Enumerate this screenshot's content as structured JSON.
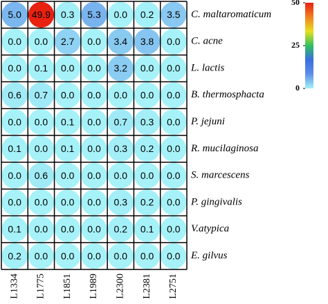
{
  "chart_data": {
    "type": "heatmap",
    "categories": [
      "L1334",
      "L1775",
      "L1851",
      "L1989",
      "L2300",
      "L2381",
      "L2751"
    ],
    "rows": [
      "C. maltaromaticum",
      "C. acne",
      "L. lactis",
      "B. thermosphacta",
      "P. jejuni",
      "R. mucilaginosa",
      "S. marcescens",
      "P. gingivalis",
      "V.atypica",
      "E. gilvus"
    ],
    "values": [
      [
        5.0,
        49.9,
        0.3,
        5.3,
        0.0,
        0.2,
        3.5
      ],
      [
        0.0,
        0.0,
        2.7,
        0.0,
        3.4,
        3.8,
        0.0
      ],
      [
        0.0,
        0.1,
        0.0,
        0.0,
        3.2,
        0.0,
        0.0
      ],
      [
        0.6,
        0.7,
        0.0,
        0.0,
        0.0,
        0.0,
        0.0
      ],
      [
        0.0,
        0.0,
        0.1,
        0.0,
        0.7,
        0.3,
        0.0
      ],
      [
        0.1,
        0.0,
        0.1,
        0.0,
        0.3,
        0.2,
        0.0
      ],
      [
        0.0,
        0.6,
        0.0,
        0.0,
        0.0,
        0.0,
        0.0
      ],
      [
        0.0,
        0.0,
        0.0,
        0.0,
        0.3,
        0.2,
        0.0
      ],
      [
        0.1,
        0.0,
        0.0,
        0.0,
        0.2,
        0.1,
        0.0
      ],
      [
        0.2,
        0.0,
        0.0,
        0.0,
        0.0,
        0.0,
        0.0
      ]
    ],
    "value_labels": [
      [
        "5.0",
        "49.9",
        "0.3",
        "5.3",
        "0.0",
        "0.2",
        "3.5"
      ],
      [
        "0.0",
        "0.0",
        "2.7",
        "0.0",
        "3.4",
        "3.8",
        "0.0"
      ],
      [
        "0.0",
        "0.1",
        "0.0",
        "0.0",
        "3.2",
        "0.0",
        "0.0"
      ],
      [
        "0.6",
        "0.7",
        "0.0",
        "0.0",
        "0.0",
        "0.0",
        "0.0"
      ],
      [
        "0.0",
        "0.0",
        "0.1",
        "0.0",
        "0.7",
        "0.3",
        "0.0"
      ],
      [
        "0.1",
        "0.0",
        "0.1",
        "0.0",
        "0.3",
        "0.2",
        "0.0"
      ],
      [
        "0.0",
        "0.6",
        "0.0",
        "0.0",
        "0.0",
        "0.0",
        "0.0"
      ],
      [
        "0.0",
        "0.0",
        "0.0",
        "0.0",
        "0.3",
        "0.2",
        "0.0"
      ],
      [
        "0.1",
        "0.0",
        "0.0",
        "0.0",
        "0.2",
        "0.1",
        "0.0"
      ],
      [
        "0.2",
        "0.0",
        "0.0",
        "0.0",
        "0.0",
        "0.0",
        "0.0"
      ]
    ],
    "clim": [
      0,
      50
    ],
    "clticks": [
      0,
      25,
      50
    ],
    "colormap": [
      "#a6f2f8",
      "#5f8fe8",
      "#3a6fe0",
      "#30c060",
      "#e8e020",
      "#f08020",
      "#e82010"
    ]
  }
}
